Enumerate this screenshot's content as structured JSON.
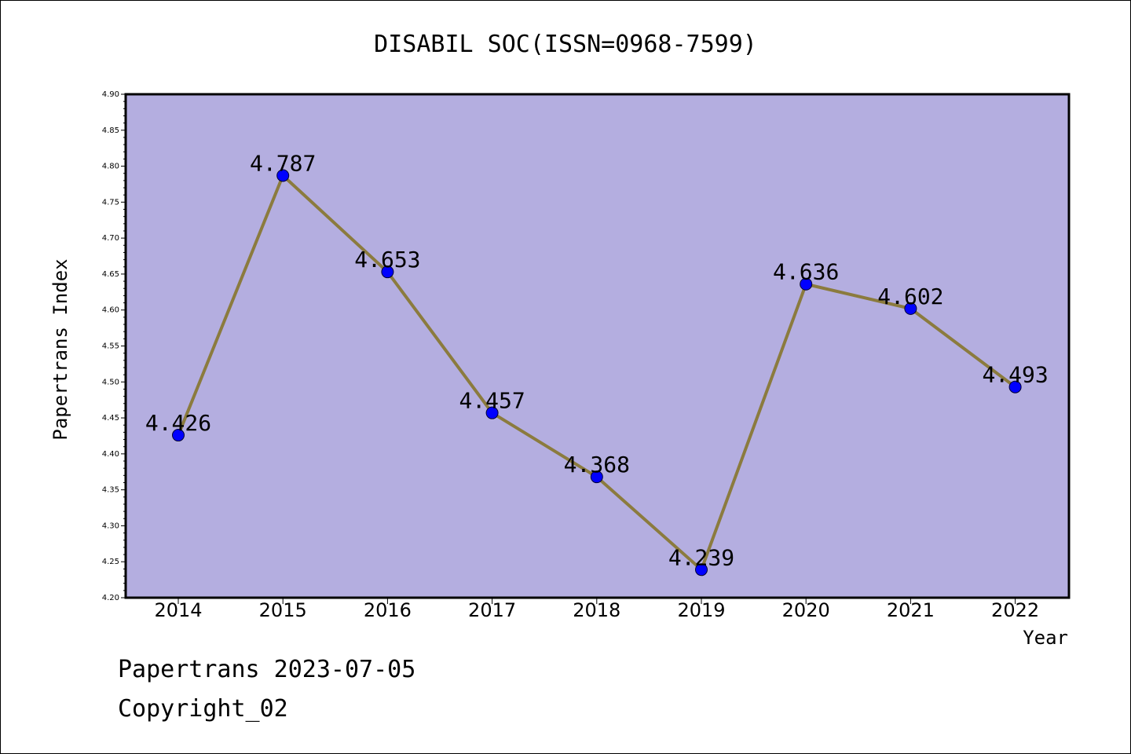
{
  "chart_data": {
    "type": "line",
    "title": "DISABIL SOC(ISSN=0968-7599)",
    "xlabel": "Year",
    "ylabel": "Papertrans Index",
    "categories": [
      "2014",
      "2015",
      "2016",
      "2017",
      "2018",
      "2019",
      "2020",
      "2021",
      "2022"
    ],
    "series": [
      {
        "values": [
          4.426,
          4.787,
          4.653,
          4.457,
          4.368,
          4.239,
          4.636,
          4.602,
          4.493
        ]
      }
    ],
    "data_labels": [
      "4.426",
      "4.787",
      "4.653",
      "4.457",
      "4.368",
      "4.239",
      "4.636",
      "4.602",
      "4.493"
    ],
    "ylim": [
      4.2,
      4.9
    ],
    "yticks": [
      "4.20",
      "4.25",
      "4.30",
      "4.35",
      "4.40",
      "4.45",
      "4.50",
      "4.55",
      "4.60",
      "4.65",
      "4.70",
      "4.75",
      "4.80",
      "4.85",
      "4.90"
    ],
    "grid": false,
    "colors": {
      "plot_background": "#b4aee0",
      "line": "#8b7b3e",
      "marker": "#0000ff"
    }
  },
  "footer": {
    "line1": "Papertrans 2023-07-05",
    "line2": "Copyright_02"
  }
}
